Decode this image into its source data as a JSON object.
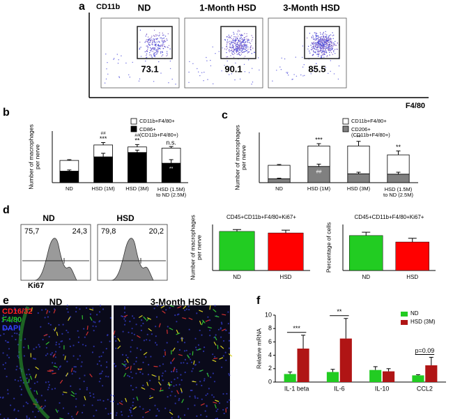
{
  "panel_labels": [
    "a",
    "b",
    "c",
    "d",
    "e",
    "f"
  ],
  "flow_cytometry": {
    "y_axis_label": "CD11b",
    "x_axis_label": "F4/80",
    "plots": [
      {
        "title": "ND",
        "gate_percent": 73.1
      },
      {
        "title": "1-Month HSD",
        "gate_percent": 90.1
      },
      {
        "title": "3-Month HSD",
        "gate_percent": 85.5
      }
    ]
  },
  "histograms": {
    "x_axis_label": "Ki67",
    "plots": [
      {
        "title": "ND",
        "left_percent": "75,7",
        "right_percent": "24,3"
      },
      {
        "title": "HSD",
        "left_percent": "79,8",
        "right_percent": "20,2"
      }
    ]
  },
  "image_panel": {
    "channels": [
      {
        "label": "CD16/32",
        "color": "#ff2020"
      },
      {
        "label": "F4/80",
        "color": "#20c020"
      },
      {
        "label": "DAPI",
        "color": "#3040ff"
      }
    ],
    "titles": [
      "ND",
      "3-Month HSD"
    ]
  },
  "chart_data": [
    {
      "type": "stacked_bar",
      "y_label": "Number of macrophages\nper nerve",
      "categories": [
        "ND",
        "HSD (1M)",
        "HSD (3M)",
        "HSD (1.5M)\nto ND (2.5M)"
      ],
      "series": [
        {
          "name": "CD86+\n(CD11b+F4/80+)",
          "color": "#000000",
          "values": [
            290,
            650,
            760,
            490
          ],
          "errors": [
            30,
            90,
            60,
            90
          ]
        },
        {
          "name": "CD11b+F4/80+",
          "color": "#ffffff",
          "values": [
            270,
            300,
            140,
            380
          ],
          "errors": [
            20,
            60,
            60,
            40
          ]
        }
      ],
      "annotations": [
        {
          "category": 1,
          "labels": [
            "***",
            "##"
          ]
        },
        {
          "category": 2,
          "labels": [
            "**",
            "##"
          ]
        },
        {
          "category": 3,
          "labels": [
            "n.s."
          ]
        }
      ],
      "inner_annotations": [
        {
          "category": 3,
          "text": "**"
        }
      ],
      "ylim": [
        0,
        1300
      ]
    },
    {
      "type": "stacked_bar",
      "y_label": "Number of macrophages\nper nerve",
      "categories": [
        "ND",
        "HSD (1M)",
        "HSD (3M)",
        "HSD (1.5M)\nto ND (2.5M)"
      ],
      "series": [
        {
          "name": "CD206+\n(CD11b+F4/80+)",
          "color": "#808080",
          "values": [
            100,
            420,
            230,
            220
          ],
          "errors": [
            15,
            60,
            40,
            50
          ]
        },
        {
          "name": "CD11b+F4/80+",
          "color": "#ffffff",
          "values": [
            350,
            530,
            720,
            500
          ],
          "errors": [
            20,
            60,
            120,
            100
          ]
        }
      ],
      "annotations": [
        {
          "category": 1,
          "labels": [
            "***"
          ]
        },
        {
          "category": 2,
          "labels": [
            "**"
          ]
        },
        {
          "category": 3,
          "labels": [
            "**"
          ]
        }
      ],
      "inner_annotations": [
        {
          "category": 1,
          "text": "##"
        }
      ],
      "ylim": [
        0,
        1300
      ]
    },
    {
      "type": "bar",
      "title": "CD45+CD11b+F4/80+Ki67+",
      "y_label": "Number of macrophages\nper nerve",
      "categories": [
        "ND",
        "HSD"
      ],
      "values": [
        255,
        245
      ],
      "errors": [
        12,
        18
      ],
      "colors": [
        "#22cc22",
        "#ff0000"
      ],
      "ylim": [
        0,
        300
      ]
    },
    {
      "type": "bar",
      "title": "CD45+CD11b+F4/80+Ki67+",
      "y_label": "Percentage of cells",
      "categories": [
        "ND",
        "HSD"
      ],
      "values": [
        19,
        15.5
      ],
      "errors": [
        1.8,
        2
      ],
      "colors": [
        "#22cc22",
        "#ff0000"
      ],
      "ylim": [
        0,
        25
      ]
    },
    {
      "type": "grouped_bar",
      "y_label": "Relative mRNA",
      "categories": [
        "IL-1 beta",
        "IL-6",
        "IL-10",
        "CCL2"
      ],
      "series": [
        {
          "name": "ND",
          "color": "#22cc22",
          "values": [
            1.2,
            1.5,
            1.8,
            1.0
          ],
          "errors": [
            0.3,
            0.4,
            0.5,
            0.1
          ]
        },
        {
          "name": "HSD (3M)",
          "color": "#b01515",
          "values": [
            5.0,
            6.5,
            1.6,
            2.5
          ],
          "errors": [
            2.0,
            3.0,
            0.4,
            1.2
          ]
        }
      ],
      "annotations": [
        {
          "category": 0,
          "text": "***"
        },
        {
          "category": 1,
          "text": "**"
        },
        {
          "category": 3,
          "text": "p=0.09"
        }
      ],
      "ylim": [
        0,
        10
      ],
      "yticks": [
        0,
        2,
        4,
        6,
        8,
        10
      ]
    }
  ]
}
